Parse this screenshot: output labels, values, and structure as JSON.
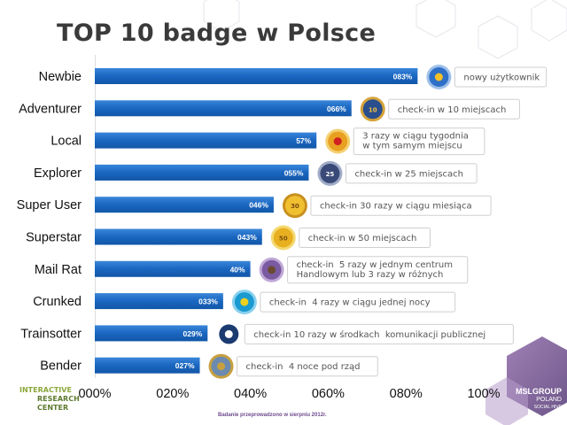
{
  "title": "TOP 10 badge w Polsce",
  "footnote": "Badanie przeprowadzono w sierpniu 2012r.",
  "logos": {
    "left": [
      "INTERACTIVE",
      "RESEARCH",
      "CENTER"
    ],
    "right": [
      "MSLGROUP",
      "POLAND",
      "SOCIAL HIVE"
    ]
  },
  "colors": {
    "bar": "#1a66c0",
    "bar_light": "#3a86da",
    "label_box_border": "#cfcfcf",
    "label_text": "#555555"
  },
  "chart_data": {
    "type": "bar",
    "orientation": "horizontal",
    "categories": [
      "Newbie",
      "Adventurer",
      "Local",
      "Explorer",
      "Super User",
      "Superstar",
      "Mail Rat",
      "Crunked",
      "Trainsotter",
      "Bender"
    ],
    "value_labels": [
      "083%",
      "066%",
      "57%",
      "055%",
      "046%",
      "043%",
      "40%",
      "033%",
      "029%",
      "027%"
    ],
    "values": [
      83,
      66,
      57,
      55,
      46,
      43,
      40,
      33,
      29,
      27
    ],
    "xlim": [
      0,
      100
    ],
    "x_ticks": [
      "000%",
      "020%",
      "040%",
      "060%",
      "080%",
      "100%"
    ],
    "annotations": [
      [
        "nowy użytkownik"
      ],
      [
        "check-in w 10 miejscach"
      ],
      [
        "3 razy w ciągu tygodnia",
        "w tym samym miejscu"
      ],
      [
        "check-in w 25 miejscach"
      ],
      [
        "check-in 30 razy w ciągu miesiąca"
      ],
      [
        "check-in w 50 miejscach"
      ],
      [
        "check-in  5 razy w jednym centrum",
        "Handlowym lub 3 razy w różnych"
      ],
      [
        "check-in  4 razy w ciągu jednej nocy"
      ],
      [
        "check-in 10 razy w środkach  komunikacji publicznej"
      ],
      [
        "check-in  4 noce pod rząd"
      ]
    ],
    "badge_icons": [
      "newbie-badge-icon",
      "adventurer-badge-icon",
      "local-badge-icon",
      "explorer-badge-icon",
      "super-user-badge-icon",
      "superstar-badge-icon",
      "mail-rat-badge-icon",
      "crunked-badge-icon",
      "trainsotter-badge-icon",
      "bender-badge-icon"
    ],
    "badge_texts": [
      "",
      "10",
      "",
      "25",
      "30",
      "50",
      "",
      "",
      "",
      ""
    ]
  }
}
